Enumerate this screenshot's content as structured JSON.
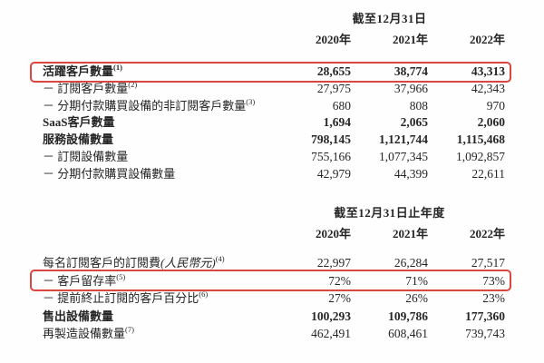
{
  "page": {
    "background_color": "#ffffff",
    "text_color": "#262626",
    "highlight_box_color": "#db463e"
  },
  "table1": {
    "period_header": "截至12月31日",
    "columns": [
      "2020年",
      "2021年",
      "2022年"
    ],
    "rows": [
      {
        "label": "活躍客戶數量",
        "note": "(1)",
        "values": [
          "28,655",
          "38,774",
          "43,313"
        ],
        "bold": true,
        "highlighted": true
      },
      {
        "label": "－ 訂閱客戶數量",
        "note": "(2)",
        "values": [
          "27,975",
          "37,966",
          "42,343"
        ],
        "bold": false,
        "highlighted": false
      },
      {
        "label": "－ 分期付款購買設備的非訂閱客戶數量",
        "note": "(3)",
        "values": [
          "680",
          "808",
          "970"
        ],
        "bold": false,
        "highlighted": false
      },
      {
        "label": "SaaS客戶數量",
        "values": [
          "1,694",
          "2,065",
          "2,060"
        ],
        "bold": true,
        "highlighted": false
      },
      {
        "label": "服務設備數量",
        "values": [
          "798,145",
          "1,121,744",
          "1,115,468"
        ],
        "bold": true,
        "highlighted": false
      },
      {
        "label": "－ 訂閱設備數量",
        "values": [
          "755,166",
          "1,077,345",
          "1,092,857"
        ],
        "bold": false,
        "highlighted": false
      },
      {
        "label": "－ 分期付款購買設備數量",
        "values": [
          "42,979",
          "44,399",
          "22,611"
        ],
        "bold": false,
        "highlighted": false
      }
    ]
  },
  "table2": {
    "period_header": "截至12月31日止年度",
    "columns": [
      "2020年",
      "2021年",
      "2022年"
    ],
    "rows": [
      {
        "label": "每名訂閱客戶的訂閱費",
        "label_paren": "(人民幣元)",
        "note": "(4)",
        "values": [
          "22,997",
          "26,284",
          "27,517"
        ],
        "bold": false,
        "highlighted": false
      },
      {
        "label": "－ 客戶留存率",
        "note": "(5)",
        "values": [
          "72%",
          "71%",
          "73%"
        ],
        "bold": false,
        "highlighted": true
      },
      {
        "label": "－ 提前終止訂閱的客戶百分比",
        "note": "(6)",
        "values": [
          "27%",
          "26%",
          "23%"
        ],
        "bold": false,
        "highlighted": false
      },
      {
        "label": "售出設備數量",
        "values": [
          "100,293",
          "109,786",
          "177,360"
        ],
        "bold": true,
        "highlighted": false
      },
      {
        "label": "再製造設備數量",
        "note": "(7)",
        "values": [
          "462,491",
          "608,461",
          "739,743"
        ],
        "bold": false,
        "highlighted": false
      }
    ]
  }
}
